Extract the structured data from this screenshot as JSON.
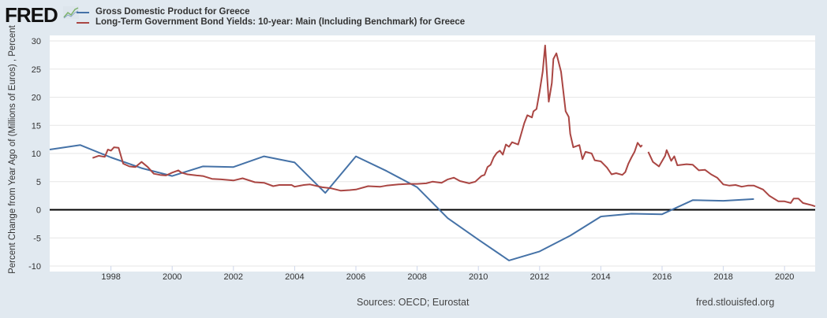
{
  "header": {
    "logo": "FRED",
    "logo_icon": "line-chart-icon"
  },
  "footer": {
    "sources": "Sources: OECD; Eurostat",
    "url": "fred.stlouisfed.org"
  },
  "chart_data": {
    "type": "line",
    "title": "",
    "ylabel": "Percent Change from Year Ago of (Millions of Euros) , Percent",
    "xlabel": "",
    "xlim": [
      1996,
      2021
    ],
    "ylim": [
      -10,
      30
    ],
    "yticks": [
      -10,
      -5,
      0,
      5,
      10,
      15,
      20,
      25,
      30
    ],
    "xticks": [
      1998,
      2000,
      2002,
      2004,
      2006,
      2008,
      2010,
      2012,
      2014,
      2016,
      2018,
      2020
    ],
    "grid": true,
    "legend": "top",
    "zero_line": true,
    "series": [
      {
        "name": "Gross Domestic Product for Greece",
        "color": "#4572a7",
        "x": [
          1996,
          1997,
          1998,
          1999,
          2000,
          2001,
          2002,
          2003,
          2004,
          2005,
          2006,
          2007,
          2008,
          2009,
          2010,
          2011,
          2012,
          2013,
          2014,
          2015,
          2016,
          2017,
          2018,
          2019
        ],
        "values": [
          10.7,
          11.5,
          9.3,
          7.4,
          6.0,
          7.7,
          7.6,
          9.5,
          8.4,
          3.0,
          9.5,
          6.9,
          4.0,
          -1.5,
          -5.3,
          -9.0,
          -7.4,
          -4.6,
          -1.2,
          -0.7,
          -0.8,
          1.7,
          1.6,
          1.9
        ]
      },
      {
        "name": "Long-Term Government Bond Yields: 10-year: Main (Including Benchmark) for Greece",
        "color": "#aa4643",
        "x": [
          1997.4,
          1997.6,
          1997.8,
          1997.9,
          1998.0,
          1998.1,
          1998.25,
          1998.4,
          1998.6,
          1998.8,
          1999.0,
          1999.2,
          1999.4,
          1999.6,
          1999.8,
          2000.0,
          2000.2,
          2000.3,
          2000.5,
          2000.8,
          2001.0,
          2001.3,
          2001.6,
          2002.0,
          2002.3,
          2002.7,
          2003.0,
          2003.3,
          2003.5,
          2003.9,
          2004.0,
          2004.3,
          2004.5,
          2004.9,
          2005.2,
          2005.5,
          2005.8,
          2006.0,
          2006.4,
          2006.8,
          2007.0,
          2007.4,
          2007.7,
          2008.0,
          2008.3,
          2008.5,
          2008.8,
          2009.0,
          2009.2,
          2009.4,
          2009.7,
          2009.9,
          2010.1,
          2010.2,
          2010.3,
          2010.4,
          2010.5,
          2010.6,
          2010.7,
          2010.8,
          2010.9,
          2011.0,
          2011.1,
          2011.3,
          2011.5,
          2011.6,
          2011.75,
          2011.8,
          2011.9,
          2012.0,
          2012.1,
          2012.18,
          2012.3,
          2012.4,
          2012.45,
          2012.55,
          2012.7,
          2012.85,
          2012.95,
          2013.0,
          2013.1,
          2013.3,
          2013.4,
          2013.5,
          2013.7,
          2013.8,
          2014.0,
          2014.2,
          2014.35,
          2014.5,
          2014.7,
          2014.8,
          2014.9,
          2015.0,
          2015.1,
          2015.2,
          2015.3,
          2015.35,
          2015.45,
          2015.55,
          2015.7,
          2015.9,
          2016.1,
          2016.15,
          2016.3,
          2016.4,
          2016.5,
          2016.8,
          2017.0,
          2017.2,
          2017.4,
          2017.6,
          2017.8,
          2018.0,
          2018.2,
          2018.4,
          2018.6,
          2018.8,
          2019.0,
          2019.3,
          2019.5,
          2019.8,
          2020.0,
          2020.2,
          2020.3,
          2020.45,
          2020.6,
          2020.9,
          2021.0
        ],
        "values": [
          9.2,
          9.6,
          9.4,
          10.7,
          10.5,
          11.1,
          11.0,
          8.2,
          7.7,
          7.6,
          8.5,
          7.6,
          6.4,
          6.2,
          6.1,
          6.6,
          7.0,
          6.6,
          6.3,
          6.1,
          6.0,
          5.5,
          5.4,
          5.2,
          5.6,
          4.9,
          4.8,
          4.2,
          4.4,
          4.4,
          4.1,
          4.4,
          4.5,
          4.0,
          3.8,
          3.4,
          3.5,
          3.6,
          4.2,
          4.1,
          4.3,
          4.5,
          4.6,
          4.6,
          4.7,
          5.0,
          4.8,
          5.4,
          5.7,
          5.1,
          4.7,
          5.0,
          6.0,
          6.2,
          7.6,
          8.0,
          9.3,
          10.1,
          10.5,
          9.8,
          11.6,
          11.2,
          12.0,
          11.6,
          15.4,
          16.8,
          16.4,
          17.5,
          17.9,
          21.0,
          24.5,
          29.2,
          19.2,
          22.5,
          26.8,
          27.8,
          24.5,
          17.5,
          16.5,
          13.5,
          11.1,
          11.5,
          9.0,
          10.3,
          10.0,
          8.8,
          8.6,
          7.5,
          6.3,
          6.5,
          6.2,
          6.7,
          8.2,
          9.3,
          10.3,
          11.9,
          11.2,
          11.5,
          null,
          10.3,
          8.5,
          7.7,
          9.6,
          10.6,
          8.7,
          9.5,
          7.9,
          8.1,
          8.0,
          7.0,
          7.1,
          6.3,
          5.7,
          4.5,
          4.3,
          4.4,
          4.1,
          4.3,
          4.3,
          3.6,
          2.5,
          1.5,
          1.5,
          1.2,
          2.0,
          2.0,
          1.2,
          0.8,
          0.6
        ]
      }
    ]
  }
}
